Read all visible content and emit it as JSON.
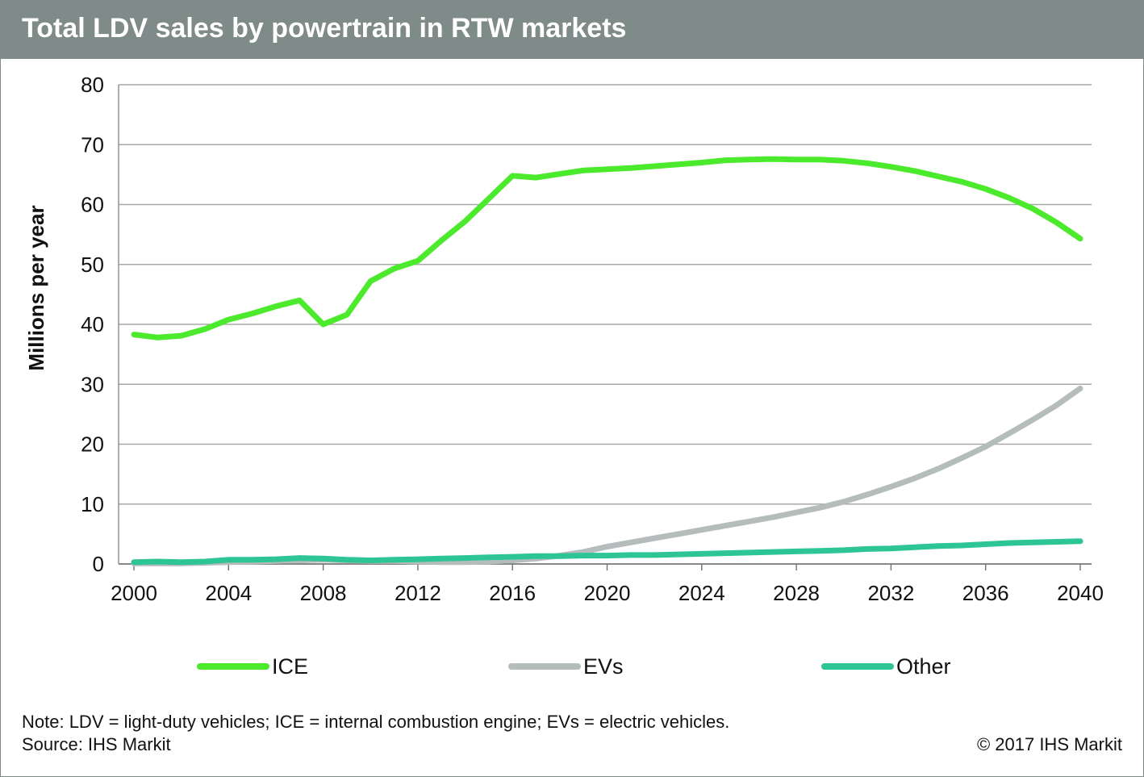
{
  "title": "Total LDV sales by powertrain in RTW markets",
  "note": "Note: LDV = light-duty vehicles; ICE = internal combustion engine; EVs = electric vehicles.",
  "source": "Source: IHS Markit",
  "copyright": "© 2017 IHS Markit",
  "chart_data": {
    "type": "line",
    "title": "Total LDV sales by powertrain in RTW markets",
    "xlabel": "",
    "ylabel": "Millions per year",
    "xlim": [
      2000,
      2040
    ],
    "ylim": [
      0,
      80
    ],
    "xticks": [
      2000,
      2004,
      2008,
      2012,
      2016,
      2020,
      2024,
      2028,
      2032,
      2036,
      2040
    ],
    "yticks": [
      0,
      10,
      20,
      30,
      40,
      50,
      60,
      70,
      80
    ],
    "grid": "horizontal",
    "legend": "bottom",
    "x": [
      2000,
      2001,
      2002,
      2003,
      2004,
      2005,
      2006,
      2007,
      2008,
      2009,
      2010,
      2011,
      2012,
      2013,
      2014,
      2015,
      2016,
      2017,
      2018,
      2019,
      2020,
      2021,
      2022,
      2023,
      2024,
      2025,
      2026,
      2027,
      2028,
      2029,
      2030,
      2031,
      2032,
      2033,
      2034,
      2035,
      2036,
      2037,
      2038,
      2039,
      2040
    ],
    "series": [
      {
        "name": "ICE",
        "color": "#4cea2c",
        "values": [
          38.3,
          37.8,
          38.1,
          39.2,
          40.8,
          41.8,
          43.0,
          44.0,
          40.0,
          41.6,
          47.2,
          49.3,
          50.6,
          54.0,
          57.2,
          61.0,
          64.8,
          64.5,
          65.1,
          65.7,
          65.9,
          66.1,
          66.4,
          66.7,
          67.0,
          67.4,
          67.5,
          67.6,
          67.5,
          67.5,
          67.3,
          66.9,
          66.3,
          65.6,
          64.7,
          63.8,
          62.6,
          61.1,
          59.3,
          57.0,
          54.3
        ]
      },
      {
        "name": "EVs",
        "color": "#b4bcbc",
        "values": [
          0.1,
          0.1,
          0.1,
          0.2,
          0.3,
          0.4,
          0.5,
          0.6,
          0.7,
          0.6,
          0.5,
          0.5,
          0.4,
          0.3,
          0.3,
          0.4,
          0.6,
          0.9,
          1.4,
          2.0,
          2.9,
          3.6,
          4.3,
          5.0,
          5.7,
          6.4,
          7.1,
          7.8,
          8.6,
          9.4,
          10.4,
          11.6,
          12.9,
          14.3,
          15.9,
          17.7,
          19.6,
          21.8,
          24.1,
          26.5,
          29.3
        ]
      },
      {
        "name": "Other",
        "color": "#2ec596",
        "values": [
          0.3,
          0.4,
          0.3,
          0.4,
          0.7,
          0.7,
          0.8,
          1.0,
          0.9,
          0.7,
          0.6,
          0.7,
          0.8,
          0.9,
          1.0,
          1.1,
          1.2,
          1.3,
          1.3,
          1.4,
          1.4,
          1.5,
          1.5,
          1.6,
          1.7,
          1.8,
          1.9,
          2.0,
          2.1,
          2.2,
          2.3,
          2.5,
          2.6,
          2.8,
          3.0,
          3.1,
          3.3,
          3.5,
          3.6,
          3.7,
          3.8
        ]
      }
    ]
  }
}
